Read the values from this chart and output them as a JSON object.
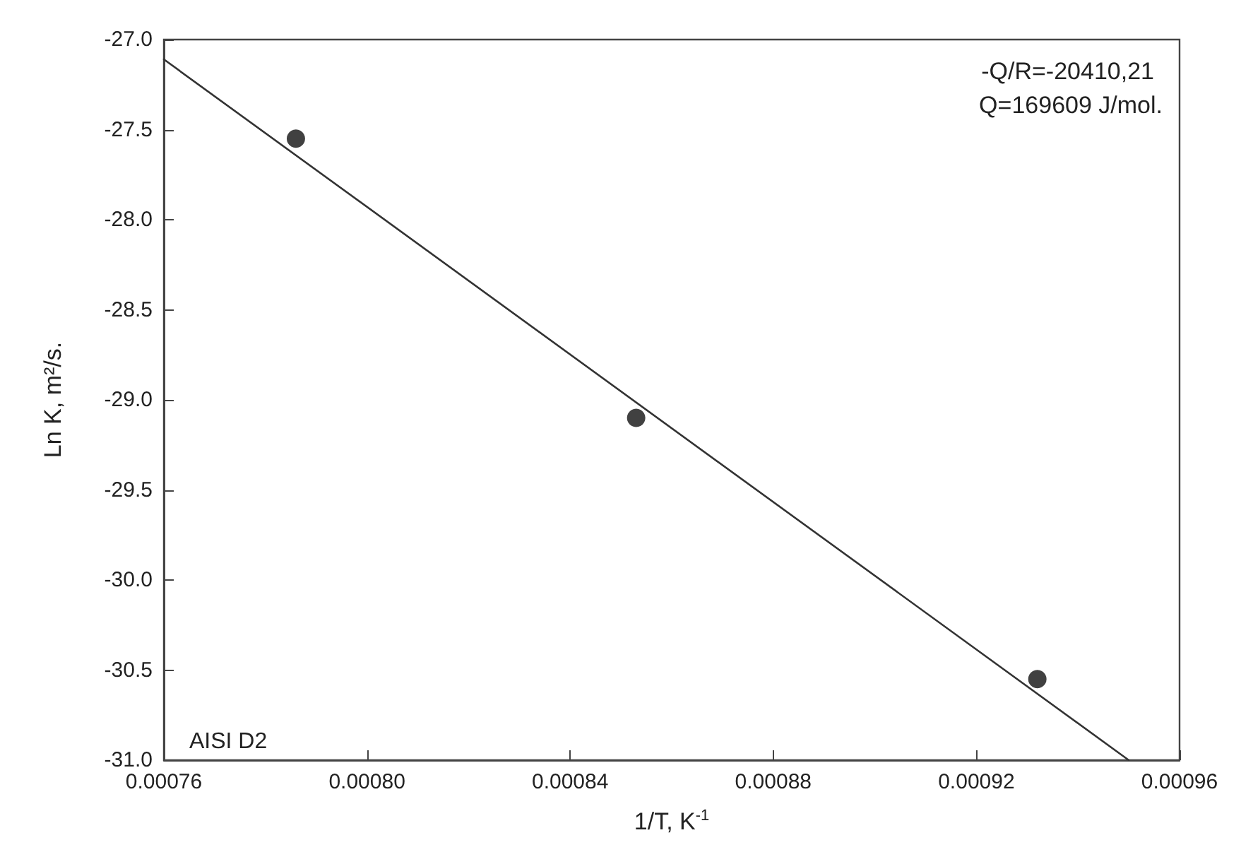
{
  "chart_data": {
    "type": "scatter",
    "xlabel": "1/T, K$^{-1}$",
    "ylabel": "Ln K, m²/s.",
    "xlim": [
      0.00076,
      0.00096
    ],
    "xticks": [
      0.00076,
      {
        "value": 0.0008,
        "label": "0.00080"
      },
      0.00084,
      0.00088,
      0.00092,
      0.00096
    ],
    "ylim": [
      -31,
      -27
    ],
    "yticks": [
      {
        "value": -31,
        "label": "-31.0"
      },
      -30.5,
      {
        "value": -30,
        "label": "-30.0"
      },
      -29.5,
      {
        "value": -29,
        "label": "-29.0"
      },
      -28.5,
      {
        "value": -28,
        "label": "-28.0"
      },
      -27.5,
      {
        "value": -27,
        "label": "-27.0"
      }
    ],
    "series": [
      {
        "color": "#111111",
        "marker": "circle",
        "x": [
          0.000786,
          0.000853,
          0.000932
        ],
        "values": [
          -27.55,
          -29.1,
          -30.55
        ]
      },
      {
        "type": "line",
        "color": "#333333",
        "marker": "none",
        "x": [
          0.00076,
          0.00095
        ],
        "values": [
          -27.11,
          -31
        ]
      }
    ],
    "annotations": [
      "-Q/R=-20410,21",
      "Q=169609 J/mol.",
      "AISI D2"
    ]
  }
}
